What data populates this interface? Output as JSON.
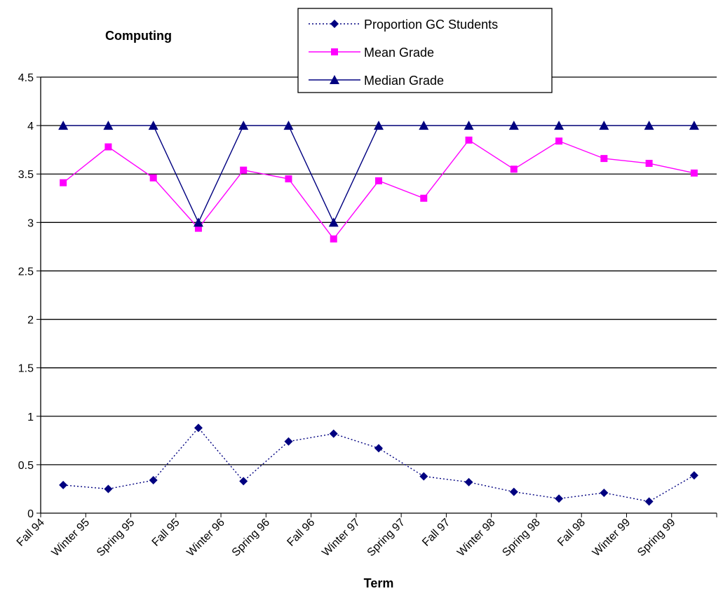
{
  "chart_data": {
    "type": "line",
    "title": "Computing",
    "xlabel": "Term",
    "ylabel": "",
    "ylim": [
      0,
      4.5
    ],
    "yticks": [
      "0",
      "0.5",
      "1",
      "1.5",
      "2",
      "2.5",
      "3",
      "3.5",
      "4",
      "4.5"
    ],
    "grid": "horizontal",
    "legend_position": "top-center",
    "tick_labels": [
      "Fall 94",
      "Winter 95",
      "Spring 95",
      "Fall 95",
      "Winter 96",
      "Spring 96",
      "Fall 96",
      "Winter 97",
      "Spring 97",
      "Fall 97",
      "Winter 98",
      "Spring 98",
      "Fall 98",
      "Winter 99",
      "Spring 99"
    ],
    "series": [
      {
        "name": "Proportion GC Students",
        "color": "#000080",
        "line_style": "dotted",
        "marker": "diamond",
        "values": [
          0.29,
          0.25,
          0.34,
          0.88,
          0.33,
          0.74,
          0.82,
          0.67,
          0.38,
          0.32,
          0.22,
          0.15,
          0.21,
          0.12,
          0.39
        ]
      },
      {
        "name": "Mean Grade",
        "color": "#ff00ff",
        "line_style": "solid",
        "marker": "square",
        "values": [
          3.41,
          3.78,
          3.46,
          2.94,
          3.54,
          3.45,
          2.83,
          3.43,
          3.25,
          3.85,
          3.55,
          3.84,
          3.66,
          3.61,
          3.51
        ]
      },
      {
        "name": "Median Grade",
        "color": "#000080",
        "line_style": "solid",
        "marker": "triangle",
        "values": [
          4,
          4,
          4,
          3,
          4,
          4,
          3,
          4,
          4,
          4,
          4,
          4,
          4,
          4,
          4
        ]
      }
    ]
  }
}
